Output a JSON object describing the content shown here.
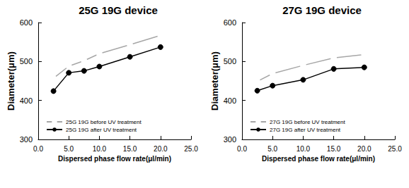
{
  "chart_data": [
    {
      "type": "line",
      "title": "25G 19G device",
      "xlabel": "Dispersed phase flow rate(μl/min)",
      "ylabel": "Diameter(μm)",
      "xlim": [
        0,
        25
      ],
      "xticks": [
        {
          "value": 0,
          "label": "0.0"
        },
        {
          "value": 5,
          "label": "5.0"
        },
        {
          "value": 10,
          "label": "10.0"
        },
        {
          "value": 15,
          "label": "15.0"
        },
        {
          "value": 20,
          "label": "20.0"
        },
        {
          "value": 25,
          "label": "25.0"
        }
      ],
      "ylim": [
        300,
        600
      ],
      "yticks": [
        300,
        400,
        500,
        600
      ],
      "grid": false,
      "legend": "lower-left",
      "x": [
        2.5,
        5,
        7.5,
        10,
        15,
        20
      ],
      "series": [
        {
          "name": "25G 19G before UV treatment",
          "color": "#a6a6a6",
          "marker": "open-circle",
          "values": [
            457,
            488,
            502,
            520,
            543,
            567
          ]
        },
        {
          "name": "25G 19G after UV treatment",
          "color": "#000000",
          "marker": "circle",
          "values": [
            424,
            471,
            476,
            487,
            512,
            537
          ]
        }
      ]
    },
    {
      "type": "line",
      "title": "27G 19G device",
      "xlabel": "Dispersed phase flow rate(μl/min)",
      "ylabel": "Diameter(μm)",
      "xlim": [
        0,
        25
      ],
      "xticks": [
        {
          "value": 0,
          "label": "0.0"
        },
        {
          "value": 5,
          "label": "5.0"
        },
        {
          "value": 10,
          "label": "10.0"
        },
        {
          "value": 15,
          "label": "15.0"
        },
        {
          "value": 20,
          "label": "20.0"
        },
        {
          "value": 25,
          "label": "25.0"
        }
      ],
      "ylim": [
        300,
        600
      ],
      "yticks": [
        300,
        400,
        500,
        600
      ],
      "grid": false,
      "legend": "lower-left",
      "x": [
        2.5,
        5,
        10,
        15,
        20
      ],
      "series": [
        {
          "name": "27G 19G before UV treatment",
          "color": "#a6a6a6",
          "marker": "open-circle",
          "values": [
            449,
            469,
            490,
            509,
            518
          ]
        },
        {
          "name": "27G 19G after UV treatment",
          "color": "#000000",
          "marker": "circle",
          "values": [
            425,
            438,
            453,
            481,
            485
          ]
        }
      ]
    }
  ]
}
